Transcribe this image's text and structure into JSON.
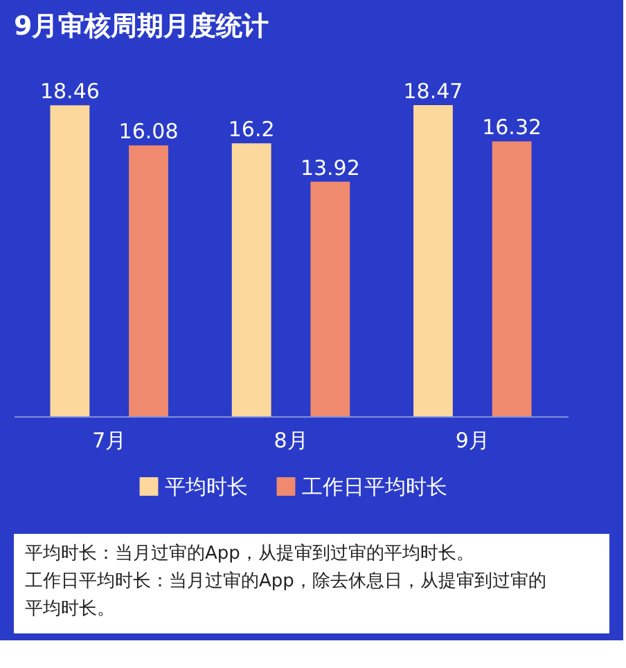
{
  "chart_data": {
    "type": "bar",
    "title": "9月审核周期月度统计",
    "categories": [
      "7月",
      "8月",
      "9月"
    ],
    "series": [
      {
        "name": "平均时长",
        "color": "#fdd89c",
        "values": [
          18.46,
          16.2,
          18.47
        ]
      },
      {
        "name": "工作日平均时长",
        "color": "#ef8a6e",
        "values": [
          16.08,
          13.92,
          16.32
        ]
      }
    ],
    "data_labels": true,
    "legend": "bottom",
    "annotations": [
      "平均时长：当月过审的App，从提审到过审的平均时长。",
      "工作日平均时长：当月过审的App，除去休息日，从提审到过审的平均时长。"
    ]
  }
}
